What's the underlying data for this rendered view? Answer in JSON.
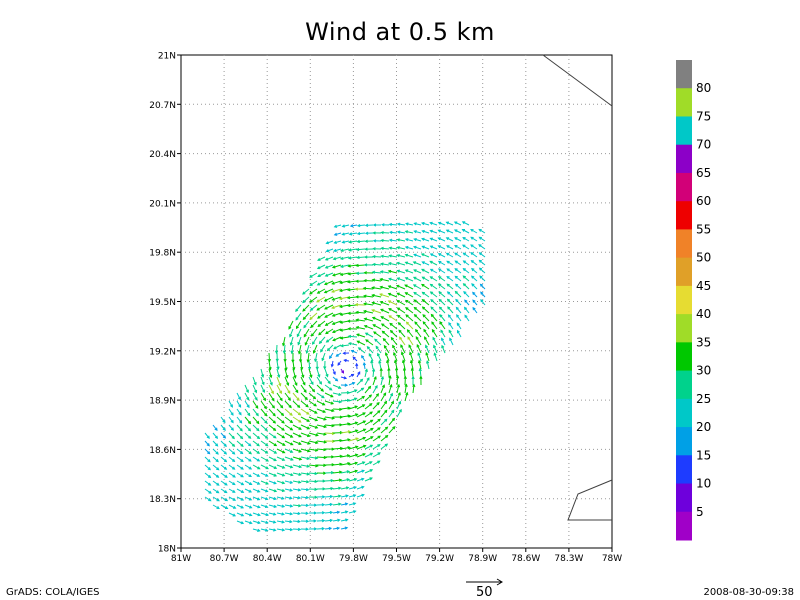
{
  "title": "Wind at 0.5 km",
  "map": {
    "lat_ticks": [
      "21N",
      "20.7N",
      "20.4N",
      "20.1N",
      "19.8N",
      "19.5N",
      "19.2N",
      "18.9N",
      "18.6N",
      "18.3N",
      "18N"
    ],
    "lon_ticks": [
      "81W",
      "80.7W",
      "80.4W",
      "80.1W",
      "79.8W",
      "79.5W",
      "79.2W",
      "78.9W",
      "78.6W",
      "78.3W",
      "78W"
    ],
    "grid": "dotted",
    "center_lon": -79.85,
    "center_lat": 19.1
  },
  "colorbar": {
    "labels": [
      "80",
      "75",
      "70",
      "65",
      "60",
      "55",
      "50",
      "45",
      "40",
      "35",
      "30",
      "25",
      "20",
      "15",
      "10",
      "5"
    ],
    "colors": [
      "#808080",
      "#a0dc28",
      "#00c8c8",
      "#8c00c8",
      "#d20078",
      "#ee0000",
      "#f08228",
      "#e0a028",
      "#e6dc32",
      "#a0dc28",
      "#00c800",
      "#00d28c",
      "#00c8c8",
      "#00a0e6",
      "#1e3cff",
      "#6e00dc",
      "#a000c8"
    ]
  },
  "reference_vector": {
    "value": "50"
  },
  "footer": {
    "left": "GrADS: COLA/IGES",
    "right": "2008-08-30-09:38"
  }
}
